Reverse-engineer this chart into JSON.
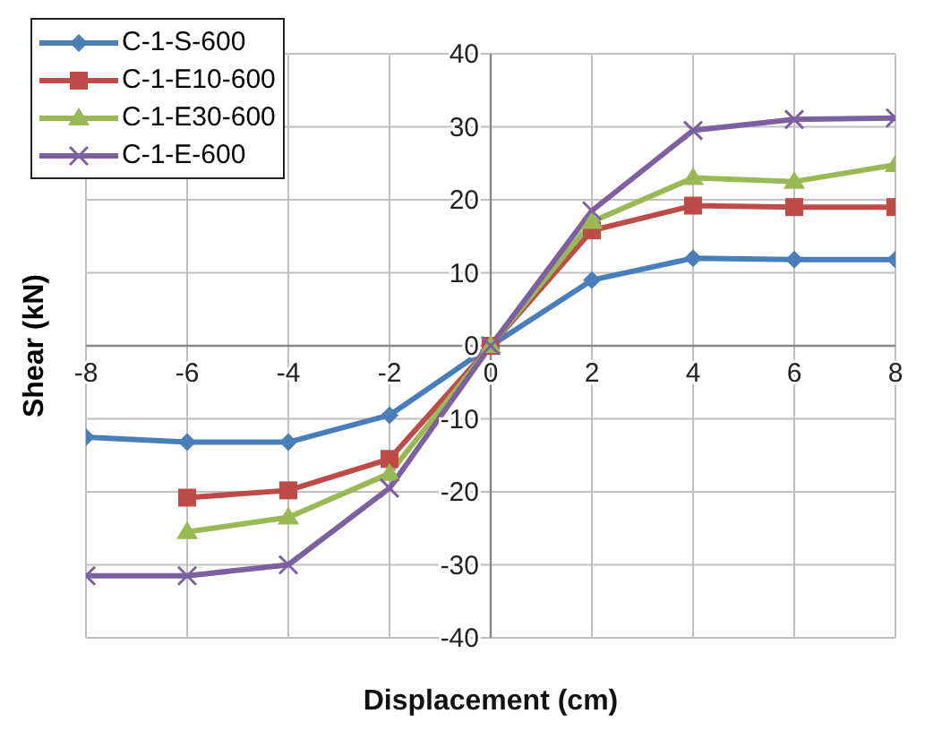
{
  "chart_data": {
    "type": "line",
    "xlabel": "Displacement (cm)",
    "ylabel": "Shear (kN)",
    "x": [
      -8,
      -6,
      -4,
      -2,
      0,
      2,
      4,
      6,
      8
    ],
    "xlim": [
      -8,
      8
    ],
    "xticks": [
      -8,
      -6,
      -4,
      -2,
      0,
      2,
      4,
      6,
      8
    ],
    "ylim": [
      -40,
      40
    ],
    "yticks": [
      -40,
      -30,
      -20,
      -10,
      0,
      10,
      20,
      30,
      40
    ],
    "grid": true,
    "legend": "top left",
    "series": [
      {
        "name": "C-1-S-600",
        "color": "#4a7ebb",
        "marker": "diamond",
        "values": [
          -12.5,
          -13.2,
          -13.2,
          -9.5,
          0,
          9,
          12,
          11.8,
          11.8
        ]
      },
      {
        "name": "C-1-E10-600",
        "color": "#be4b48",
        "marker": "square",
        "values": [
          null,
          -20.8,
          -19.8,
          -15.5,
          0,
          15.8,
          19.2,
          19,
          19
        ]
      },
      {
        "name": "C-1-E30-600",
        "color": "#98b954",
        "marker": "triangle",
        "values": [
          null,
          -25.5,
          -23.5,
          -17.5,
          0,
          17,
          23,
          22.5,
          24.8
        ]
      },
      {
        "name": "C-1-E-600",
        "color": "#7d60a0",
        "marker": "cross",
        "values": [
          -31.5,
          -31.5,
          -30,
          -19.5,
          0,
          18.5,
          29.5,
          31,
          31.2
        ]
      }
    ]
  }
}
